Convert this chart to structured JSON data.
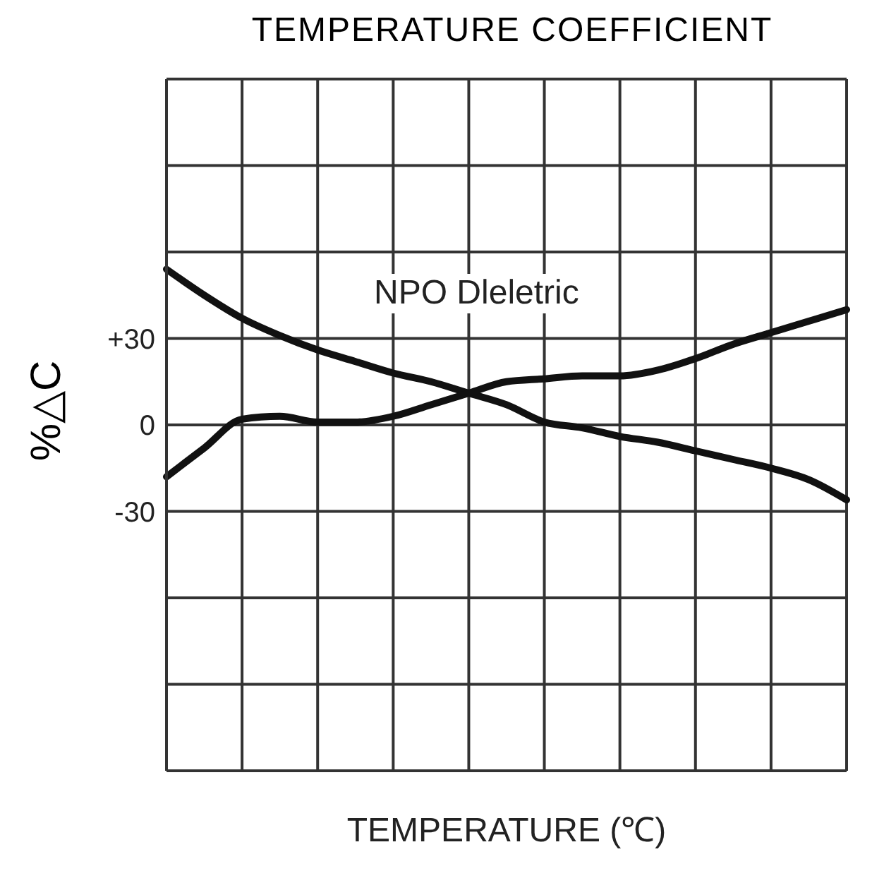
{
  "chart_data": {
    "type": "line",
    "title": "TEMPERATURE COEFFICIENT",
    "xlabel": "TEMPERATURE (℃)",
    "ylabel": "%△C",
    "annotations": [
      "NPO Dleletric"
    ],
    "categories": [
      null,
      null,
      null,
      null,
      null,
      null,
      null,
      null,
      null,
      null,
      null,
      null,
      null,
      null,
      null,
      null,
      null,
      null,
      null
    ],
    "series": [
      {
        "color": "#111111",
        "values": [
          54,
          45,
          37,
          31,
          26,
          22,
          18,
          15,
          11,
          7,
          1,
          -1,
          -4,
          -6,
          -9,
          -12,
          -15,
          -19,
          -26
        ]
      },
      {
        "color": "#111111",
        "values": [
          -18,
          -8,
          2,
          3,
          1,
          1,
          3,
          7,
          11,
          15,
          16,
          17,
          17,
          19,
          23,
          28,
          32,
          36,
          40
        ]
      }
    ],
    "ylim": [
      -120,
      120
    ],
    "yticks": [
      {
        "value": -120,
        "label": null
      },
      {
        "value": -90,
        "label": null
      },
      {
        "value": -60,
        "label": null
      },
      -30,
      0,
      {
        "value": 30,
        "label": "+30"
      },
      {
        "value": 60,
        "label": null
      },
      {
        "value": 90,
        "label": null
      },
      {
        "value": 120,
        "label": null
      }
    ],
    "grid": true,
    "legend": false,
    "marker": "none",
    "line_style": "solid"
  }
}
